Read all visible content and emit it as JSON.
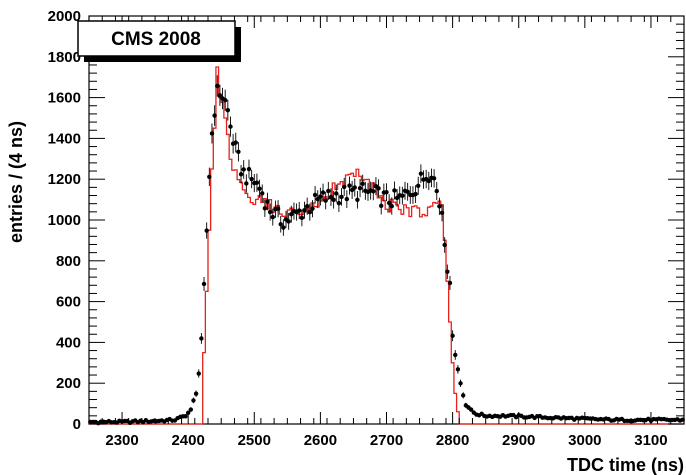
{
  "chart_data": {
    "type": "histogram",
    "annotation": "CMS 2008",
    "xlabel": "TDC time (ns)",
    "ylabel": "entries / (4 ns)",
    "xlim": [
      2250,
      3150
    ],
    "ylim": [
      0,
      2000
    ],
    "xticks": [
      2300,
      2400,
      2500,
      2600,
      2700,
      2800,
      2900,
      3000,
      3100
    ],
    "yticks": [
      0,
      200,
      400,
      600,
      800,
      1000,
      1200,
      1400,
      1600,
      1800,
      2000
    ],
    "bin_width": 4,
    "grid": false,
    "colors": {
      "simulation": "#e8211d",
      "data": "#000000"
    },
    "simulation_knots": [
      [
        2250,
        0
      ],
      [
        2420,
        0
      ],
      [
        2424,
        350
      ],
      [
        2428,
        650
      ],
      [
        2432,
        950
      ],
      [
        2436,
        1250
      ],
      [
        2440,
        1450
      ],
      [
        2444,
        1750
      ],
      [
        2448,
        1600
      ],
      [
        2452,
        1580
      ],
      [
        2456,
        1500
      ],
      [
        2460,
        1400
      ],
      [
        2464,
        1300
      ],
      [
        2470,
        1250
      ],
      [
        2476,
        1200
      ],
      [
        2484,
        1150
      ],
      [
        2492,
        1120
      ],
      [
        2500,
        1100
      ],
      [
        2520,
        1070
      ],
      [
        2540,
        1050
      ],
      [
        2560,
        1030
      ],
      [
        2580,
        1040
      ],
      [
        2600,
        1100
      ],
      [
        2620,
        1150
      ],
      [
        2640,
        1200
      ],
      [
        2660,
        1220
      ],
      [
        2670,
        1200
      ],
      [
        2680,
        1150
      ],
      [
        2700,
        1080
      ],
      [
        2720,
        1050
      ],
      [
        2740,
        1050
      ],
      [
        2760,
        1050
      ],
      [
        2776,
        1100
      ],
      [
        2780,
        1100
      ],
      [
        2784,
        1050
      ],
      [
        2788,
        900
      ],
      [
        2792,
        700
      ],
      [
        2796,
        500
      ],
      [
        2800,
        300
      ],
      [
        2804,
        150
      ],
      [
        2808,
        60
      ],
      [
        2812,
        0
      ],
      [
        3150,
        0
      ]
    ],
    "data_knots": [
      [
        2250,
        10
      ],
      [
        2300,
        10
      ],
      [
        2350,
        15
      ],
      [
        2380,
        20
      ],
      [
        2395,
        40
      ],
      [
        2405,
        70
      ],
      [
        2410,
        130
      ],
      [
        2414,
        200
      ],
      [
        2418,
        300
      ],
      [
        2422,
        500
      ],
      [
        2426,
        800
      ],
      [
        2430,
        1100
      ],
      [
        2434,
        1350
      ],
      [
        2438,
        1500
      ],
      [
        2442,
        1600
      ],
      [
        2446,
        1640
      ],
      [
        2450,
        1620
      ],
      [
        2454,
        1600
      ],
      [
        2460,
        1530
      ],
      [
        2466,
        1420
      ],
      [
        2472,
        1340
      ],
      [
        2478,
        1270
      ],
      [
        2484,
        1230
      ],
      [
        2490,
        1210
      ],
      [
        2500,
        1190
      ],
      [
        2510,
        1150
      ],
      [
        2520,
        1070
      ],
      [
        2530,
        1030
      ],
      [
        2540,
        1000
      ],
      [
        2550,
        1000
      ],
      [
        2560,
        1020
      ],
      [
        2580,
        1060
      ],
      [
        2600,
        1100
      ],
      [
        2620,
        1120
      ],
      [
        2640,
        1130
      ],
      [
        2660,
        1140
      ],
      [
        2680,
        1130
      ],
      [
        2700,
        1100
      ],
      [
        2720,
        1100
      ],
      [
        2740,
        1150
      ],
      [
        2760,
        1220
      ],
      [
        2768,
        1250
      ],
      [
        2772,
        1200
      ],
      [
        2780,
        1080
      ],
      [
        2784,
        1050
      ],
      [
        2790,
        850
      ],
      [
        2796,
        650
      ],
      [
        2800,
        450
      ],
      [
        2806,
        300
      ],
      [
        2812,
        200
      ],
      [
        2818,
        120
      ],
      [
        2826,
        70
      ],
      [
        2835,
        50
      ],
      [
        2850,
        40
      ],
      [
        2880,
        40
      ],
      [
        2920,
        35
      ],
      [
        2960,
        30
      ],
      [
        3000,
        25
      ],
      [
        3050,
        20
      ],
      [
        3150,
        20
      ]
    ]
  }
}
